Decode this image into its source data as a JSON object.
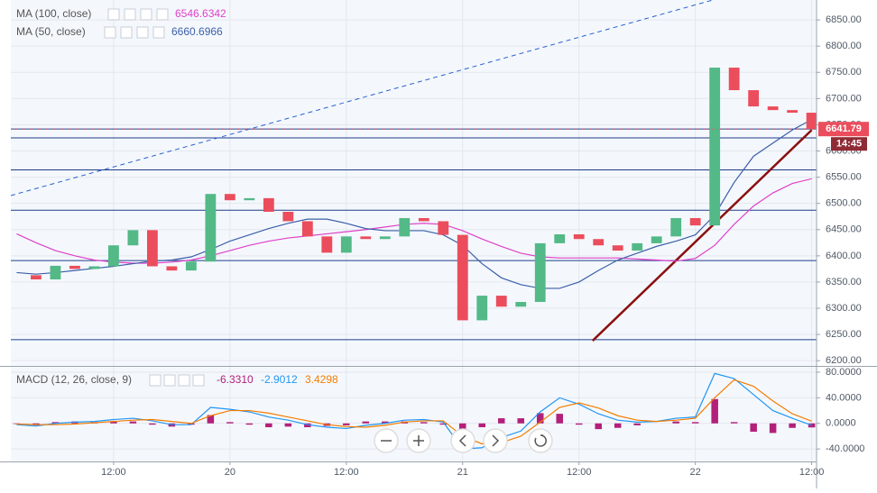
{
  "chart_data": [
    {
      "type": "candlestick",
      "x": [
        2,
        4,
        6,
        8,
        10,
        12,
        14,
        16,
        18,
        20,
        22,
        24,
        26,
        28,
        30,
        32,
        34,
        36,
        38,
        40,
        42,
        44,
        46,
        48,
        50,
        52,
        54,
        56,
        58,
        60,
        62,
        64,
        66,
        68,
        70,
        72,
        74,
        76,
        78,
        80,
        82,
        84
      ],
      "close": [
        6363,
        6355,
        6381,
        6375,
        6380,
        6420,
        6449,
        6380,
        6372,
        6389,
        6518,
        6506,
        6510,
        6484,
        6466,
        6437,
        6406,
        6437,
        6432,
        6437,
        6472,
        6466,
        6440,
        6277,
        6324,
        6303,
        6312,
        6424,
        6441,
        6432,
        6420,
        6410,
        6424,
        6437,
        6472,
        6458,
        6759,
        6716,
        6685,
        6678,
        6673,
        6642
      ],
      "up_color": "#53b987",
      "down_color": "#eb4d5c",
      "series": [
        {
          "name": "MA (100, close)",
          "legend_value": "6546.6342",
          "color": "#e040c8",
          "values": [
            6442,
            6425,
            6410,
            6400,
            6392,
            6388,
            6386,
            6386,
            6388,
            6392,
            6400,
            6410,
            6420,
            6428,
            6434,
            6438,
            6442,
            6446,
            6450,
            6455,
            6460,
            6462,
            6460,
            6448,
            6432,
            6418,
            6405,
            6398,
            6396,
            6396,
            6396,
            6396,
            6394,
            6392,
            6390,
            6395,
            6420,
            6460,
            6495,
            6520,
            6538,
            6547
          ]
        },
        {
          "name": "MA (50, close)",
          "legend_value": "6660.6966",
          "color": "#3c5fa8",
          "values": [
            6368,
            6365,
            6368,
            6372,
            6376,
            6380,
            6385,
            6390,
            6392,
            6398,
            6412,
            6428,
            6440,
            6452,
            6462,
            6470,
            6470,
            6462,
            6452,
            6448,
            6448,
            6448,
            6440,
            6420,
            6385,
            6358,
            6345,
            6338,
            6338,
            6350,
            6372,
            6392,
            6405,
            6418,
            6428,
            6440,
            6478,
            6540,
            6590,
            6615,
            6640,
            6660
          ]
        }
      ],
      "xlim": [
        1.4,
        84.5
      ],
      "ylim": [
        6190,
        6888
      ],
      "yticks": [
        {
          "value": 6200,
          "label": "6200.00"
        },
        {
          "value": 6250,
          "label": "6250.00"
        },
        {
          "value": 6300,
          "label": "6300.00"
        },
        {
          "value": 6350,
          "label": "6350.00"
        },
        {
          "value": 6400,
          "label": "6400.00"
        },
        {
          "value": 6450,
          "label": "6450.00"
        },
        {
          "value": 6500,
          "label": "6500.00"
        },
        {
          "value": 6550,
          "label": "6550.00"
        },
        {
          "value": 6600,
          "label": "6600.00"
        },
        {
          "value": 6650,
          "label": "6650.00"
        },
        {
          "value": 6700,
          "label": "6700.00"
        },
        {
          "value": 6750,
          "label": "6750.00"
        },
        {
          "value": 6800,
          "label": "6800.00"
        },
        {
          "value": 6850,
          "label": "6850.00"
        }
      ],
      "grid": true,
      "hlines": [
        6642,
        6625,
        6564,
        6487,
        6391,
        6240
      ],
      "hline_color": "#1f3c88",
      "trendlines": [
        {
          "x": [
            1.4,
            73.8
          ],
          "y": [
            6515,
            6888
          ],
          "color": "#2a5fcf",
          "dashed": true
        },
        {
          "x": [
            61.4,
            84.0
          ],
          "y": [
            6238,
            6640
          ],
          "color": "#8b1010",
          "dashed": false
        }
      ],
      "price_label": {
        "value": 6641.79,
        "label": "6641.79"
      },
      "countdown": "14:45"
    },
    {
      "type": "macd",
      "title": "MACD (12, 26, close, 9)",
      "x": [
        2,
        4,
        6,
        8,
        10,
        12,
        14,
        16,
        18,
        20,
        22,
        24,
        26,
        28,
        30,
        32,
        34,
        36,
        38,
        40,
        42,
        44,
        46,
        48,
        50,
        52,
        54,
        56,
        58,
        60,
        62,
        64,
        66,
        68,
        70,
        72,
        74,
        76,
        78,
        80,
        82,
        84
      ],
      "series": [
        {
          "legend_value": "-6.3310",
          "color": "#b3207a",
          "style": "bar",
          "values": [
            -1,
            -2,
            2,
            3,
            2,
            3,
            3,
            -2,
            -5,
            -2,
            13,
            2,
            -2,
            -6,
            -5,
            -6,
            -4,
            -3,
            3,
            3,
            3,
            2,
            -2,
            -20,
            -6,
            8,
            8,
            16,
            15,
            -2,
            -9,
            -7,
            -3,
            0,
            3,
            2,
            38,
            2,
            -13,
            -15,
            -7,
            -6.331
          ]
        },
        {
          "legend_value": "-2.9012",
          "color": "#2196f3",
          "style": "line",
          "values": [
            -2,
            -4,
            0,
            2,
            3,
            6,
            8,
            4,
            -2,
            -2,
            25,
            22,
            18,
            10,
            5,
            -2,
            -6,
            -8,
            -3,
            0,
            5,
            6,
            2,
            -40,
            -38,
            -22,
            -12,
            18,
            40,
            30,
            15,
            5,
            2,
            3,
            8,
            10,
            78,
            70,
            45,
            20,
            8,
            -2.9012
          ]
        },
        {
          "legend_value": "3.4298",
          "color": "#f57c00",
          "style": "line",
          "values": [
            -1,
            -2,
            -2,
            -1,
            1,
            3,
            5,
            6,
            3,
            0,
            12,
            20,
            20,
            16,
            10,
            4,
            -2,
            -5,
            -6,
            -3,
            2,
            4,
            4,
            -20,
            -32,
            -30,
            -20,
            2,
            25,
            32,
            24,
            12,
            5,
            3,
            5,
            8,
            40,
            68,
            58,
            35,
            15,
            3.4298
          ]
        }
      ],
      "xlim": [
        1.4,
        84.5
      ],
      "ylim": [
        -59.5,
        88.4
      ],
      "yticks": [
        {
          "value": -40,
          "label": "-40.0000"
        },
        {
          "value": 0,
          "label": "0.0000"
        },
        {
          "value": 40,
          "label": "40.0000"
        },
        {
          "value": 80,
          "label": "80.0000"
        }
      ],
      "xticks": [
        {
          "value": 12,
          "label": "12:00"
        },
        {
          "value": 24,
          "label": "20"
        },
        {
          "value": 36,
          "label": "12:00"
        },
        {
          "value": 48,
          "label": "21"
        },
        {
          "value": 60,
          "label": "12:00"
        },
        {
          "value": 72,
          "label": "22"
        },
        {
          "value": 84,
          "label": "12:00"
        }
      ],
      "grid": true
    }
  ]
}
